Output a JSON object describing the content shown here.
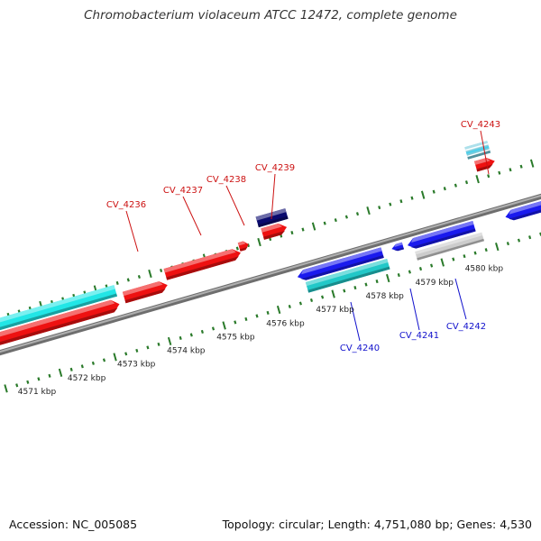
{
  "title": "Chromobacterium violaceum ATCC 12472, complete genome",
  "footer": {
    "accession": "Accession: NC_005085",
    "summary": "Topology: circular; Length: 4,751,080 bp; Genes: 4,530"
  },
  "colors": {
    "backbone": "#888888",
    "tick": "#2a7a2a",
    "forward_label": "#cc1111",
    "reverse_label": "#1111cc"
  },
  "scale": {
    "unit": "kbp",
    "labels": [
      "4571 kbp",
      "4572 kbp",
      "4573 kbp",
      "4574 kbp",
      "4575 kbp",
      "4576 kbp",
      "4577 kbp",
      "4578 kbp",
      "4579 kbp",
      "4580 kbp"
    ]
  },
  "gene_labels": [
    {
      "id": "CV_4236",
      "strand": "forward"
    },
    {
      "id": "CV_4237",
      "strand": "forward"
    },
    {
      "id": "CV_4238",
      "strand": "forward"
    },
    {
      "id": "CV_4239",
      "strand": "forward"
    },
    {
      "id": "CV_4243",
      "strand": "forward"
    },
    {
      "id": "CV_4240",
      "strand": "reverse"
    },
    {
      "id": "CV_4241",
      "strand": "reverse"
    },
    {
      "id": "CV_4242",
      "strand": "reverse"
    }
  ],
  "features": [
    {
      "kind": "cds",
      "strand": "forward",
      "color": "#ee1111"
    },
    {
      "kind": "rna",
      "strand": "forward",
      "color": "#22e6e6"
    },
    {
      "kind": "cds",
      "strand": "forward",
      "color": "#ee1111"
    },
    {
      "kind": "cds",
      "strand": "forward",
      "color": "#ee1111"
    },
    {
      "kind": "cds",
      "strand": "forward",
      "color": "#ee1111"
    },
    {
      "kind": "cds",
      "strand": "forward",
      "color": "#ee1111"
    },
    {
      "kind": "other",
      "strand": "forward",
      "color": "#0a0a6e"
    },
    {
      "kind": "cds",
      "strand": "forward",
      "color": "#ee1111"
    },
    {
      "kind": "misc",
      "strand": "forward",
      "color": "#77ccdd"
    },
    {
      "kind": "cds",
      "strand": "reverse",
      "color": "#1a1aee"
    },
    {
      "kind": "rna",
      "strand": "reverse",
      "color": "#22c8c8"
    },
    {
      "kind": "cds",
      "strand": "reverse",
      "color": "#1a1aee"
    },
    {
      "kind": "cds",
      "strand": "reverse",
      "color": "#1a1aee"
    },
    {
      "kind": "pseudo",
      "strand": "reverse",
      "color": "#cccccc"
    },
    {
      "kind": "cds",
      "strand": "reverse",
      "color": "#1a1aee"
    }
  ]
}
